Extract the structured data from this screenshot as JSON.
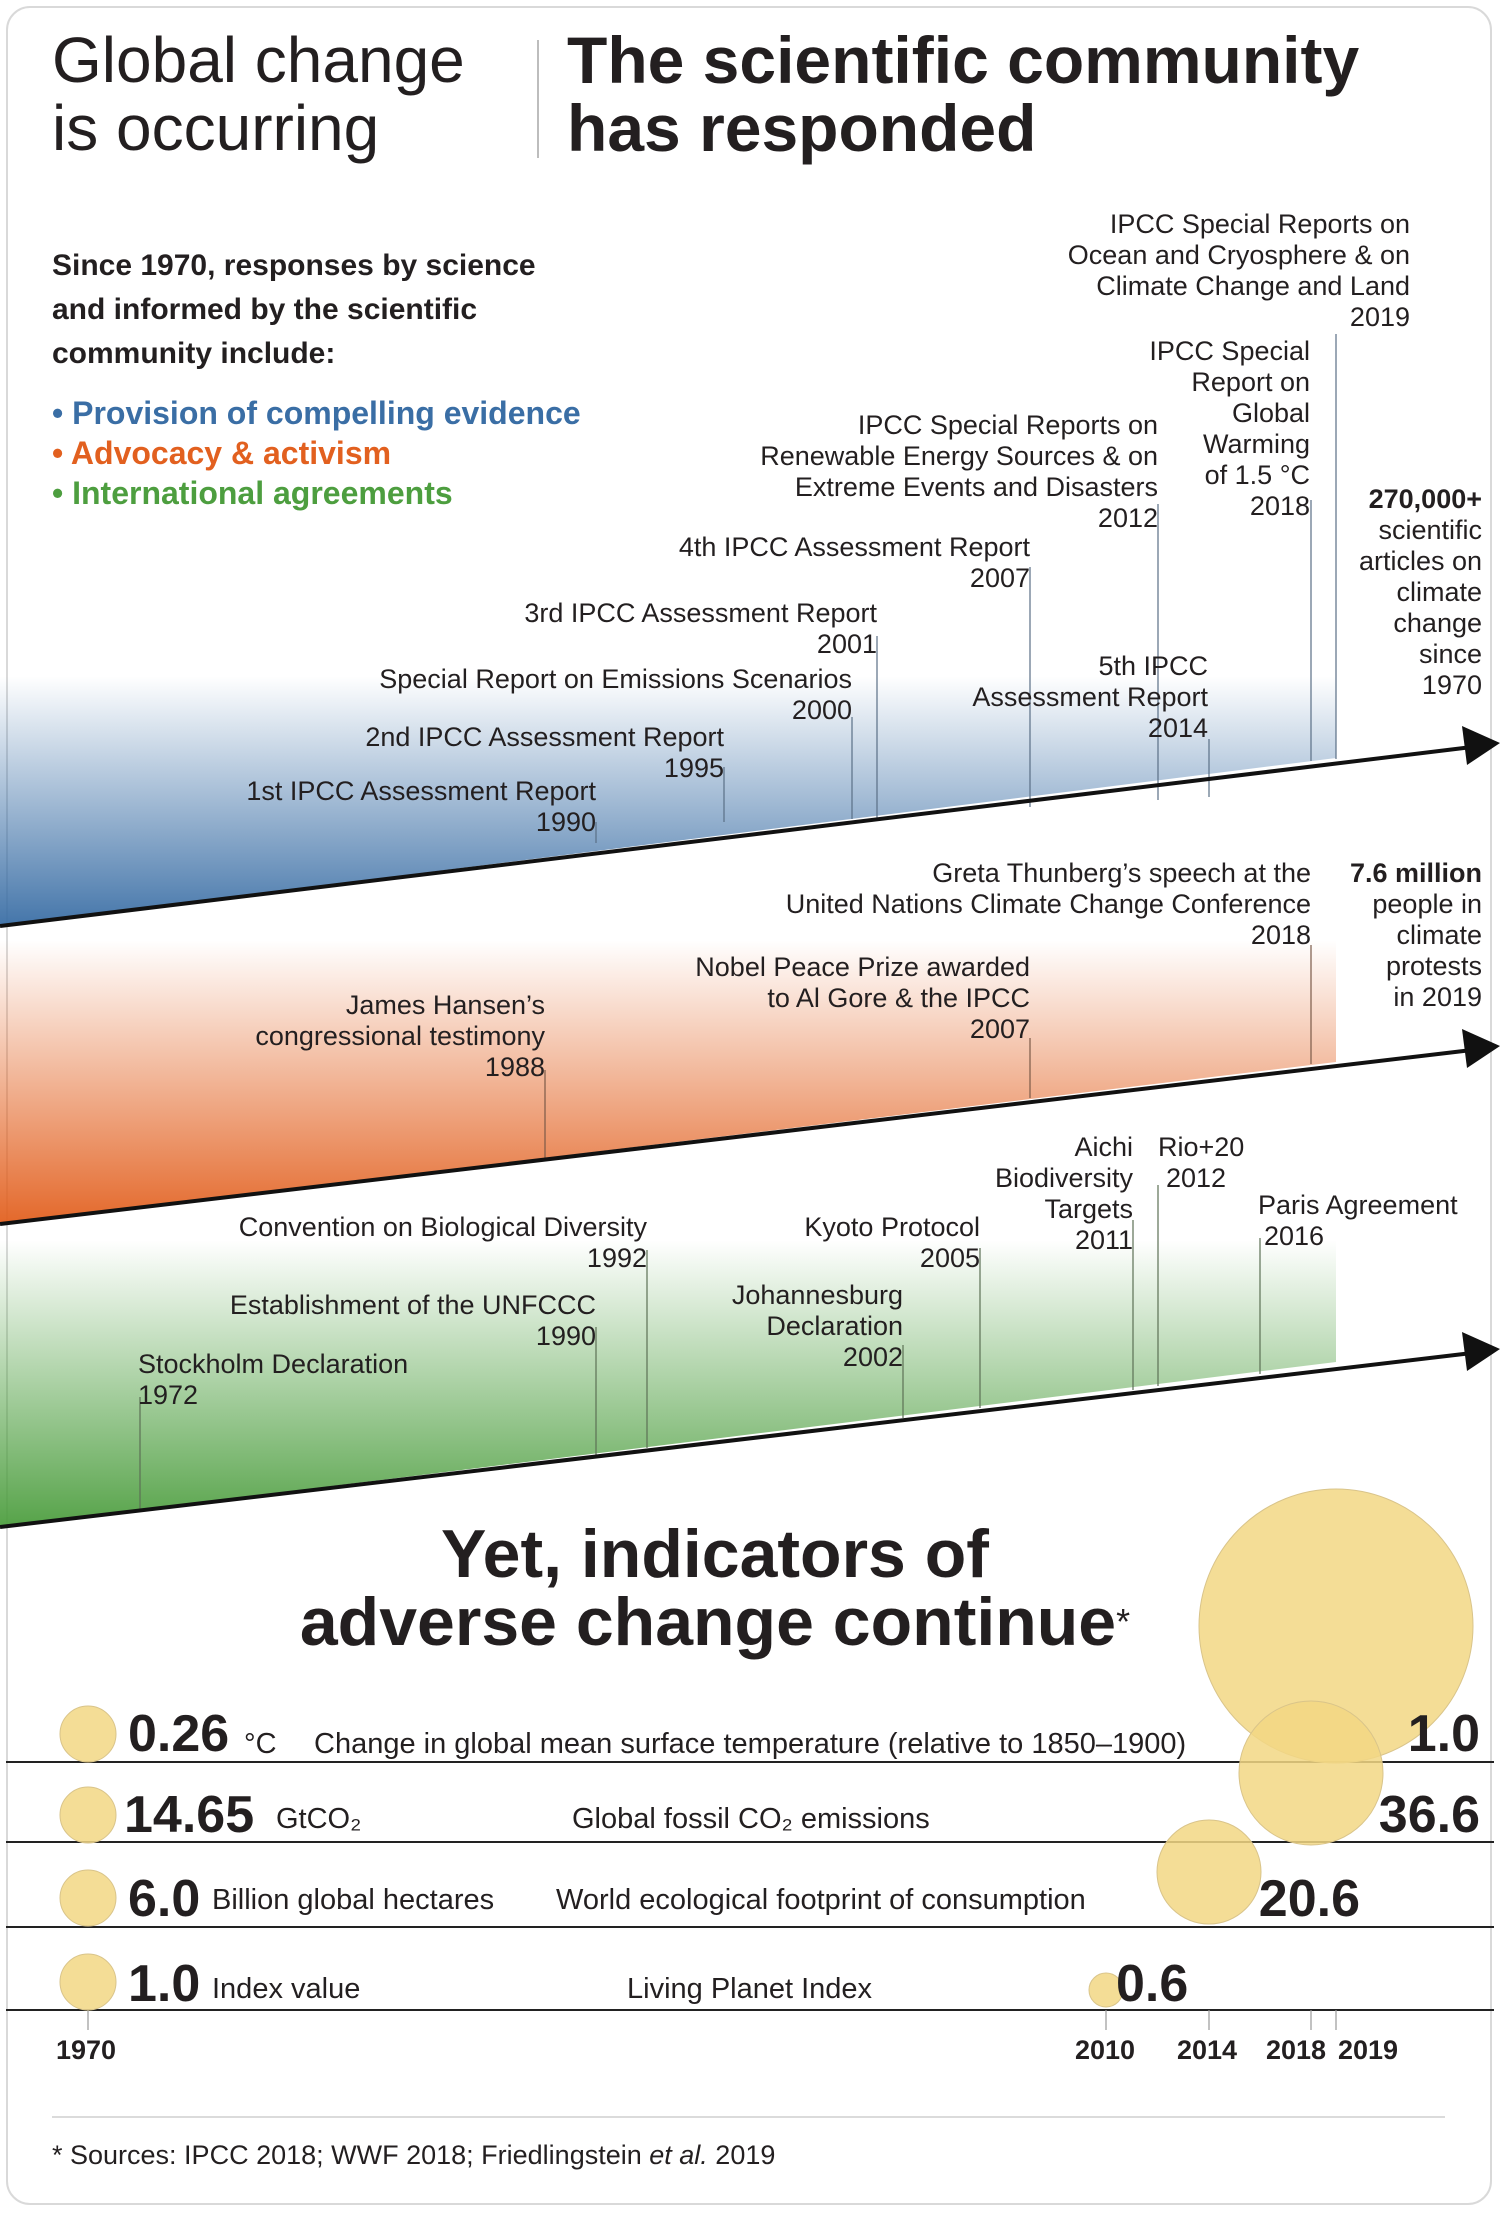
{
  "header": {
    "left_title": [
      "Global change",
      "is occurring"
    ],
    "right_title": [
      "The scientific community",
      "has responded"
    ]
  },
  "intro": {
    "text": [
      "Since 1970, responses by science",
      "and informed by the scientific",
      "community include:"
    ],
    "categories": [
      {
        "label": "• Provision of compelling evidence",
        "color": "#3a6ea5"
      },
      {
        "label": "• Advocacy & activism",
        "color": "#e2601f"
      },
      {
        "label": "• International agreements",
        "color": "#4d9e3f"
      }
    ]
  },
  "evidence": {
    "color": "#3a6ea5",
    "events": [
      {
        "lines": [
          "1st IPCC Assessment Report",
          "1990"
        ]
      },
      {
        "lines": [
          "2nd IPCC Assessment Report",
          "1995"
        ]
      },
      {
        "lines": [
          "Special Report on Emissions Scenarios",
          "2000"
        ]
      },
      {
        "lines": [
          "3rd IPCC Assessment Report",
          "2001"
        ]
      },
      {
        "lines": [
          "4th IPCC Assessment Report",
          "2007"
        ]
      },
      {
        "lines": [
          "IPCC Special Reports on",
          "Renewable Energy Sources & on",
          "Extreme Events and Disasters",
          "2012"
        ]
      },
      {
        "lines": [
          "5th IPCC",
          "Assessment Report",
          "2014"
        ]
      },
      {
        "lines": [
          "IPCC Special",
          "Report on",
          "Global",
          "Warming",
          "of 1.5 °C",
          "2018"
        ]
      },
      {
        "lines": [
          "IPCC Special Reports on",
          "Ocean and Cryosphere & on",
          "Climate Change and Land",
          "2019"
        ]
      }
    ],
    "side_bold": "270,000+",
    "side_lines": [
      "scientific",
      "articles on",
      "climate",
      "change",
      "since",
      "1970"
    ]
  },
  "activism": {
    "color": "#e2601f",
    "events": [
      {
        "lines": [
          "James Hansen’s",
          "congressional testimony",
          "1988"
        ]
      },
      {
        "lines": [
          "Nobel Peace Prize awarded",
          "to Al Gore & the IPCC",
          "2007"
        ]
      },
      {
        "lines": [
          "Greta Thunberg’s speech at the",
          "United Nations Climate Change Conference",
          "2018"
        ]
      }
    ],
    "side_bold": "7.6 million",
    "side_lines": [
      "people in",
      "climate",
      "protests",
      "in 2019"
    ]
  },
  "agreements": {
    "color": "#4d9e3f",
    "events": [
      {
        "lines": [
          "Stockholm Declaration",
          "1972"
        ]
      },
      {
        "lines": [
          "Establishment of the UNFCCC",
          "1990"
        ]
      },
      {
        "lines": [
          "Convention on Biological Diversity",
          "1992"
        ]
      },
      {
        "lines": [
          "Johannesburg",
          "Declaration",
          "2002"
        ]
      },
      {
        "lines": [
          "Kyoto Protocol",
          "2005"
        ]
      },
      {
        "lines": [
          "Aichi",
          "Biodiversity",
          "Targets",
          "2011"
        ]
      },
      {
        "lines": [
          "Rio+20",
          "2012"
        ]
      },
      {
        "lines": [
          "Paris Agreement",
          "2016"
        ]
      }
    ]
  },
  "indicators": {
    "heading": [
      "Yet, indicators of",
      "adverse change continue"
    ],
    "asterisk": "*",
    "bubble_color": "#f2d784",
    "rows": [
      {
        "start_value": "0.26",
        "unit": "°C",
        "label": "Change in global mean surface temperature (relative to 1850–1900)",
        "end_value": "1.0",
        "end_year": "2019"
      },
      {
        "start_value": "14.65",
        "unit": "GtCO₂",
        "label": "Global fossil CO₂ emissions",
        "end_value": "36.6",
        "end_year": "2018"
      },
      {
        "start_value": "6.0",
        "unit": "Billion global hectares",
        "label": "World ecological footprint of consumption",
        "end_value": "20.6",
        "end_year": "2014"
      },
      {
        "start_value": "1.0",
        "unit": "Index value",
        "label": "Living Planet Index",
        "end_value": "0.6",
        "end_year": "2010"
      }
    ],
    "years": [
      "1970",
      "2010",
      "2014",
      "2018",
      "2019"
    ]
  },
  "footer": {
    "prefix": "* Sources: IPCC  2018; WWF 2018; Friedlingstein ",
    "italic": "et al.",
    "suffix": " 2019"
  }
}
